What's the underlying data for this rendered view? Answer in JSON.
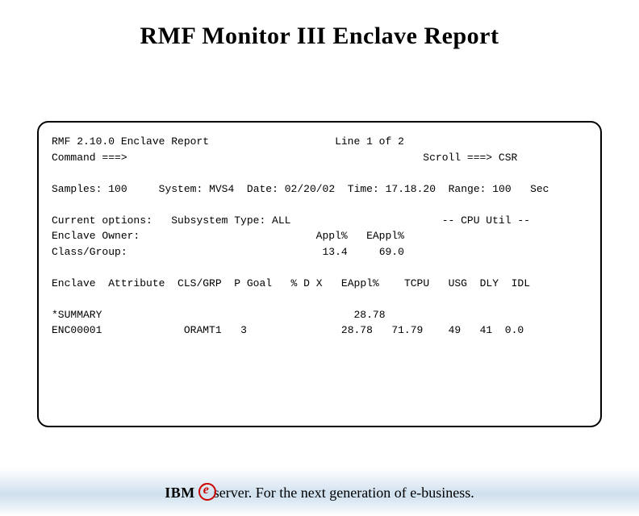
{
  "title": "RMF Monitor III Enclave Report",
  "report": {
    "product": "RMF 2.10.0 Enclave Report",
    "line_info": "Line 1 of 2",
    "command_prompt": "Command ===>",
    "scroll": "Scroll ===> CSR",
    "samples_label": "Samples:",
    "samples_value": "100",
    "system_label": "System:",
    "system_value": "MVS4",
    "date_label": "Date:",
    "date_value": "02/20/02",
    "time_label": "Time:",
    "time_value": "17.18.20",
    "range_label": "Range:",
    "range_value": "100",
    "range_unit": "Sec",
    "opt_current": "Current options:",
    "opt_subsys": "Subsystem Type: ALL",
    "cpu_util_hdr": "-- CPU Util --",
    "opt_owner": "Enclave Owner:",
    "appl_label": "Appl%",
    "appl_value": "13.4",
    "eappl_label": "EAppl%",
    "eappl_value": "69.0",
    "opt_class": "Class/Group:",
    "col": {
      "enclave": "Enclave",
      "attribute": "Attribute",
      "clsgrp": "CLS/GRP",
      "pgoal": "P Goal",
      "pctd": "% D",
      "x": "X",
      "eappl": "EAppl%",
      "tcpu": "TCPU",
      "usg": "USG",
      "dly": "DLY",
      "idl": "IDL"
    },
    "rows": [
      {
        "enclave": "*SUMMARY",
        "attribute": "",
        "clsgrp": "",
        "pgoal": "",
        "pctd": "",
        "x": "",
        "eappl": "28.78",
        "tcpu": "",
        "usg": "",
        "dly": "",
        "idl": ""
      },
      {
        "enclave": "ENC00001",
        "attribute": "",
        "clsgrp": "ORAMT1",
        "pgoal": "3",
        "pctd": "",
        "x": "",
        "eappl": "28.78",
        "tcpu": "71.79",
        "usg": "49",
        "dly": "41",
        "idl": "0.0"
      }
    ]
  },
  "footer": {
    "ibm": "IBM",
    "server": "server.",
    "tagline": " For the next generation of e-business."
  },
  "colors": {
    "accent_red": "#cc0000",
    "text": "#000000",
    "bg": "#ffffff",
    "band_mid": "#cfe0ee"
  }
}
